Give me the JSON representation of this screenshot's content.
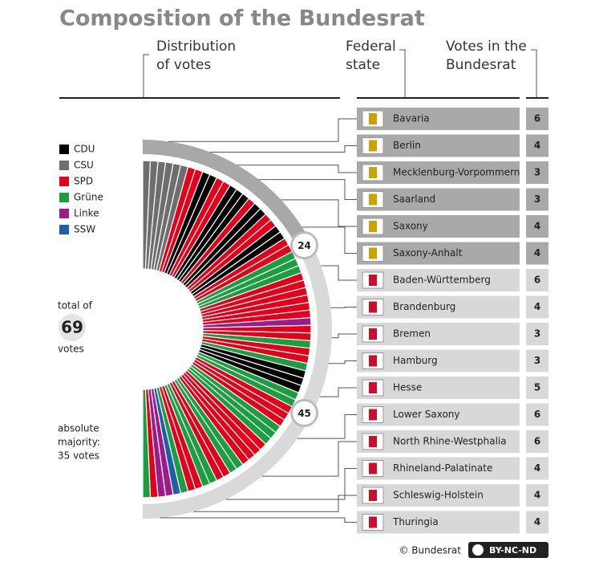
{
  "title": "Composition of the Bundesrat",
  "headers": {
    "distribution": [
      "Distribution",
      "of votes"
    ],
    "state": [
      "Federal",
      "state"
    ],
    "votes": [
      "Votes in the",
      "Bundesrat"
    ]
  },
  "parties": [
    {
      "name": "CDU",
      "color": "#000000"
    },
    {
      "name": "CSU",
      "color": "#6e6e6e"
    },
    {
      "name": "SPD",
      "color": "#e2001a"
    },
    {
      "name": "Grüne",
      "color": "#1a9e3f"
    },
    {
      "name": "Linke",
      "color": "#9b1b8a"
    },
    {
      "name": "SSW",
      "color": "#1f5fa8"
    }
  ],
  "total": {
    "label": "total of",
    "value": "69",
    "unit": "votes"
  },
  "majority": [
    "absolute",
    "majority:",
    "35 votes"
  ],
  "markers": [
    24,
    45
  ],
  "states": [
    {
      "name": "Bavaria",
      "votes": 6,
      "parties": [
        "CSU",
        "CSU",
        "CSU",
        "CSU",
        "CSU",
        "CSU"
      ]
    },
    {
      "name": "Berlin",
      "votes": 4,
      "parties": [
        "SPD",
        "SPD",
        "CDU",
        "CDU"
      ]
    },
    {
      "name": "Mecklenburg-Vorpommern",
      "votes": 3,
      "parties": [
        "SPD",
        "SPD",
        "CDU"
      ]
    },
    {
      "name": "Saarland",
      "votes": 3,
      "parties": [
        "CDU",
        "CDU",
        "SPD"
      ]
    },
    {
      "name": "Saxony",
      "votes": 4,
      "parties": [
        "CDU",
        "CDU",
        "SPD",
        "SPD"
      ]
    },
    {
      "name": "Saxony-Anhalt",
      "votes": 4,
      "parties": [
        "CDU",
        "CDU",
        "SPD",
        "SPD"
      ]
    },
    {
      "name": "Baden-Württemberg",
      "votes": 6,
      "parties": [
        "Grüne",
        "Grüne",
        "Grüne",
        "SPD",
        "SPD",
        "SPD"
      ]
    },
    {
      "name": "Brandenburg",
      "votes": 4,
      "parties": [
        "SPD",
        "SPD",
        "SPD",
        "Linke"
      ]
    },
    {
      "name": "Bremen",
      "votes": 3,
      "parties": [
        "SPD",
        "SPD",
        "Grüne"
      ]
    },
    {
      "name": "Hamburg",
      "votes": 3,
      "parties": [
        "SPD",
        "SPD",
        "Grüne"
      ]
    },
    {
      "name": "Hesse",
      "votes": 5,
      "parties": [
        "CDU",
        "CDU",
        "CDU",
        "Grüne",
        "Grüne"
      ]
    },
    {
      "name": "Lower Saxony",
      "votes": 6,
      "parties": [
        "SPD",
        "SPD",
        "SPD",
        "Grüne",
        "Grüne",
        "Grüne"
      ]
    },
    {
      "name": "North Rhine-Westphalia",
      "votes": 6,
      "parties": [
        "SPD",
        "SPD",
        "SPD",
        "SPD",
        "Grüne",
        "Grüne"
      ]
    },
    {
      "name": "Rhineland-Palatinate",
      "votes": 4,
      "parties": [
        "SPD",
        "SPD",
        "Grüne",
        "Grüne"
      ]
    },
    {
      "name": "Schleswig-Holstein",
      "votes": 4,
      "parties": [
        "SPD",
        "SPD",
        "Grüne",
        "SSW"
      ]
    },
    {
      "name": "Thuringia",
      "votes": 4,
      "parties": [
        "Linke",
        "Linke",
        "SPD",
        "Grüne"
      ]
    }
  ],
  "credit": "© Bundesrat",
  "license": "BY-NC-ND"
}
